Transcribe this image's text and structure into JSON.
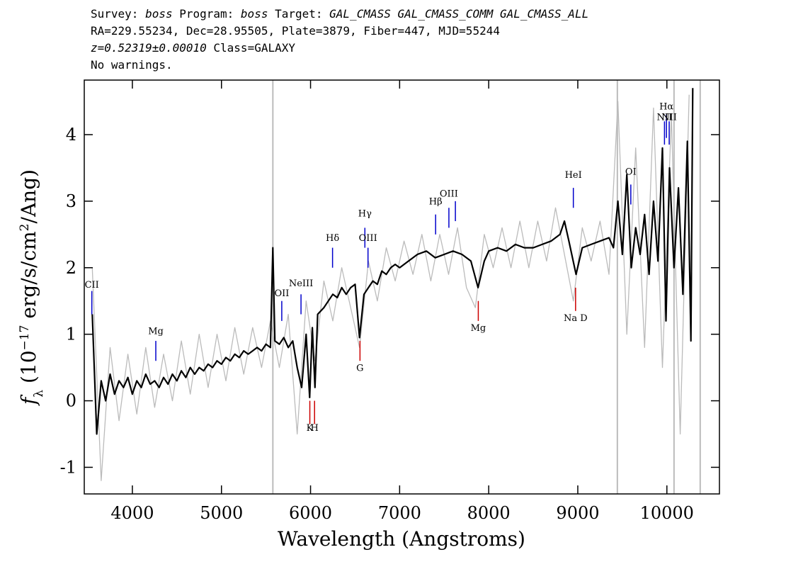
{
  "chart_data": {
    "type": "line",
    "header": [
      [
        {
          "text": "Survey: ",
          "italic": false
        },
        {
          "text": "boss",
          "italic": true
        },
        {
          "text": " Program: ",
          "italic": false
        },
        {
          "text": "boss",
          "italic": true
        },
        {
          "text": " Target: ",
          "italic": false
        },
        {
          "text": "GAL_CMASS GAL_CMASS_COMM GAL_CMASS_ALL",
          "italic": true
        }
      ],
      [
        {
          "text": "RA=229.55234, Dec=28.95505, Plate=3879, Fiber=447, MJD=55244",
          "italic": false
        }
      ],
      [
        {
          "text": "z=0.52319±0.00010",
          "italic": true
        },
        {
          "text": " Class=GALAXY",
          "italic": false
        }
      ],
      [
        {
          "text": "No warnings.",
          "italic": false
        }
      ]
    ],
    "x_label": "Wavelength (Angstroms)",
    "y_label": [
      {
        "text": "f",
        "style": "italic"
      },
      {
        "text": "λ",
        "style": "sub"
      },
      {
        "text": " (10",
        "style": "normal"
      },
      {
        "text": "−17",
        "style": "sup"
      },
      {
        "text": " erg/s/cm",
        "style": "normal"
      },
      {
        "text": "2",
        "style": "sup"
      },
      {
        "text": "/Ang)",
        "style": "normal"
      }
    ],
    "xlim": [
      3460,
      10590
    ],
    "ylim": [
      -1.4,
      4.82
    ],
    "xticks": [
      4000,
      5000,
      6000,
      7000,
      8000,
      9000,
      10000
    ],
    "yticks": [
      -1,
      0,
      1,
      2,
      3,
      4
    ],
    "vlines": [
      5577,
      9444,
      10080,
      10374
    ],
    "vline_color": "#bbbbbb",
    "series": [
      {
        "color": "#bbbbbb",
        "x": [
          3550,
          3650,
          3750,
          3850,
          3950,
          4050,
          4150,
          4250,
          4350,
          4450,
          4550,
          4650,
          4750,
          4850,
          4950,
          5050,
          5150,
          5250,
          5350,
          5450,
          5550,
          5650,
          5750,
          5850,
          5950,
          6050,
          6150,
          6250,
          6350,
          6450,
          6550,
          6650,
          6750,
          6850,
          6950,
          7050,
          7150,
          7250,
          7350,
          7450,
          7550,
          7650,
          7750,
          7850,
          7950,
          8050,
          8150,
          8250,
          8350,
          8450,
          8550,
          8650,
          8750,
          8850,
          8950,
          9050,
          9150,
          9250,
          9350,
          9450,
          9550,
          9650,
          9750,
          9850,
          9950,
          10050,
          10150,
          10250
        ],
        "values": [
          2.0,
          -1.2,
          0.8,
          -0.3,
          0.7,
          -0.2,
          0.8,
          -0.1,
          0.7,
          0.0,
          0.9,
          0.1,
          1.0,
          0.2,
          1.0,
          0.3,
          1.1,
          0.4,
          1.1,
          0.5,
          1.2,
          0.5,
          1.3,
          -0.5,
          1.5,
          0.6,
          1.8,
          1.2,
          2.0,
          1.4,
          0.8,
          2.1,
          1.5,
          2.3,
          1.8,
          2.4,
          1.9,
          2.5,
          1.8,
          2.5,
          1.9,
          2.6,
          1.7,
          1.4,
          2.5,
          2.0,
          2.6,
          2.0,
          2.7,
          2.0,
          2.7,
          2.1,
          2.9,
          2.2,
          1.5,
          2.6,
          2.1,
          2.7,
          1.9,
          4.5,
          1.0,
          3.8,
          0.8,
          4.4,
          0.5,
          4.3,
          -0.5,
          4.6
        ]
      },
      {
        "color": "#000000",
        "x": [
          3550,
          3600,
          3650,
          3700,
          3750,
          3800,
          3850,
          3900,
          3950,
          4000,
          4050,
          4100,
          4150,
          4200,
          4250,
          4300,
          4350,
          4400,
          4450,
          4500,
          4550,
          4600,
          4650,
          4700,
          4750,
          4800,
          4850,
          4900,
          4950,
          5000,
          5050,
          5100,
          5150,
          5200,
          5250,
          5300,
          5350,
          5400,
          5450,
          5500,
          5550,
          5577,
          5600,
          5650,
          5700,
          5750,
          5800,
          5850,
          5900,
          5950,
          5990,
          6020,
          6050,
          6080,
          6150,
          6200,
          6250,
          6300,
          6350,
          6400,
          6450,
          6500,
          6550,
          6600,
          6650,
          6700,
          6750,
          6800,
          6850,
          6900,
          6950,
          7000,
          7100,
          7200,
          7300,
          7400,
          7500,
          7600,
          7700,
          7800,
          7880,
          7950,
          8000,
          8100,
          8200,
          8300,
          8400,
          8500,
          8600,
          8700,
          8800,
          8850,
          8900,
          8980,
          9050,
          9150,
          9250,
          9350,
          9400,
          9450,
          9500,
          9550,
          9600,
          9650,
          9700,
          9750,
          9800,
          9850,
          9900,
          9950,
          9990,
          10030,
          10080,
          10130,
          10180,
          10230,
          10270,
          10290
        ],
        "values": [
          1.3,
          -0.5,
          0.3,
          0.0,
          0.4,
          0.1,
          0.3,
          0.2,
          0.35,
          0.1,
          0.3,
          0.2,
          0.4,
          0.25,
          0.3,
          0.2,
          0.35,
          0.25,
          0.4,
          0.3,
          0.45,
          0.35,
          0.5,
          0.4,
          0.5,
          0.45,
          0.55,
          0.5,
          0.6,
          0.55,
          0.65,
          0.6,
          0.7,
          0.65,
          0.75,
          0.7,
          0.75,
          0.8,
          0.75,
          0.85,
          0.8,
          2.3,
          0.9,
          0.85,
          0.95,
          0.8,
          0.9,
          0.5,
          0.2,
          1.0,
          0.05,
          1.1,
          0.2,
          1.3,
          1.4,
          1.5,
          1.6,
          1.55,
          1.7,
          1.6,
          1.7,
          1.75,
          0.95,
          1.6,
          1.7,
          1.8,
          1.75,
          1.95,
          1.9,
          2.0,
          2.05,
          2.0,
          2.1,
          2.2,
          2.25,
          2.15,
          2.2,
          2.25,
          2.2,
          2.1,
          1.7,
          2.1,
          2.25,
          2.3,
          2.25,
          2.35,
          2.3,
          2.3,
          2.35,
          2.4,
          2.5,
          2.7,
          2.4,
          1.9,
          2.3,
          2.35,
          2.4,
          2.45,
          2.3,
          3.0,
          2.2,
          3.4,
          2.0,
          2.6,
          2.2,
          2.8,
          1.9,
          3.0,
          2.1,
          3.8,
          1.2,
          3.5,
          2.0,
          3.2,
          1.6,
          3.9,
          0.9,
          4.7
        ]
      }
    ],
    "annotations": [
      {
        "label": "CII",
        "x": 3545,
        "tick": [
          1.3,
          1.65
        ],
        "label_y": 1.7,
        "color": "#0000cc"
      },
      {
        "label": "Mg",
        "x": 4263,
        "tick": [
          0.6,
          0.9
        ],
        "label_y": 1.0,
        "color": "#0000cc"
      },
      {
        "label": "OII",
        "x": 5677,
        "tick": [
          1.2,
          1.5
        ],
        "label_y": 1.57,
        "color": "#0000cc"
      },
      {
        "label": "NeIII",
        "x": 5893,
        "tick": [
          1.3,
          1.6
        ],
        "label_y": 1.72,
        "color": "#0000cc"
      },
      {
        "label": "K",
        "x": 5992,
        "tick": [
          0.0,
          -0.35
        ],
        "label_y": -0.45,
        "color": "#cc0000"
      },
      {
        "label": "H",
        "x": 6045,
        "tick": [
          0.0,
          -0.35
        ],
        "label_y": -0.45,
        "color": "#cc0000"
      },
      {
        "label": "Hδ",
        "x": 6247,
        "tick": [
          2.0,
          2.3
        ],
        "label_y": 2.4,
        "color": "#0000cc"
      },
      {
        "label": "G",
        "x": 6555,
        "tick": [
          0.9,
          0.6
        ],
        "label_y": 0.45,
        "color": "#cc0000"
      },
      {
        "label": "Hγ",
        "x": 6610,
        "tick": [
          2.3,
          2.6
        ],
        "label_y": 2.77,
        "color": "#0000cc"
      },
      {
        "label": "OIII",
        "x": 6645,
        "tick": [
          2.0,
          2.3
        ],
        "label_y": 2.4,
        "color": "#0000cc"
      },
      {
        "label": "Hβ",
        "x": 7404,
        "tick": [
          2.5,
          2.8
        ],
        "label_y": 2.95,
        "color": "#0000cc"
      },
      {
        "label": "OIII",
        "x": 7553,
        "tick": [
          2.6,
          2.9
        ],
        "label_y": 3.07,
        "color": "#0000cc"
      },
      {
        "label": "",
        "x": 7626,
        "tick": [
          2.7,
          3.0
        ],
        "label_y": 3.07,
        "color": "#0000cc"
      },
      {
        "label": "Mg",
        "x": 7883,
        "tick": [
          1.5,
          1.2
        ],
        "label_y": 1.05,
        "color": "#cc0000"
      },
      {
        "label": "HeI",
        "x": 8950,
        "tick": [
          2.9,
          3.2
        ],
        "label_y": 3.35,
        "color": "#0000cc"
      },
      {
        "label": "Na D",
        "x": 8975,
        "tick": [
          1.7,
          1.35
        ],
        "label_y": 1.2,
        "color": "#cc0000"
      },
      {
        "label": "OI",
        "x": 9595,
        "tick": [
          2.95,
          3.25
        ],
        "label_y": 3.4,
        "color": "#0000cc"
      },
      {
        "label": "NII",
        "x": 9973,
        "tick": [
          3.85,
          4.2
        ],
        "label_y": 4.22,
        "color": "#0000cc"
      },
      {
        "label": "Hα",
        "x": 9995,
        "tick": [
          3.95,
          4.3
        ],
        "label_y": 4.38,
        "color": "#0000cc"
      },
      {
        "label": "NII",
        "x": 10026,
        "tick": [
          3.85,
          4.2
        ],
        "label_y": 4.22,
        "color": "#0000cc"
      }
    ]
  }
}
